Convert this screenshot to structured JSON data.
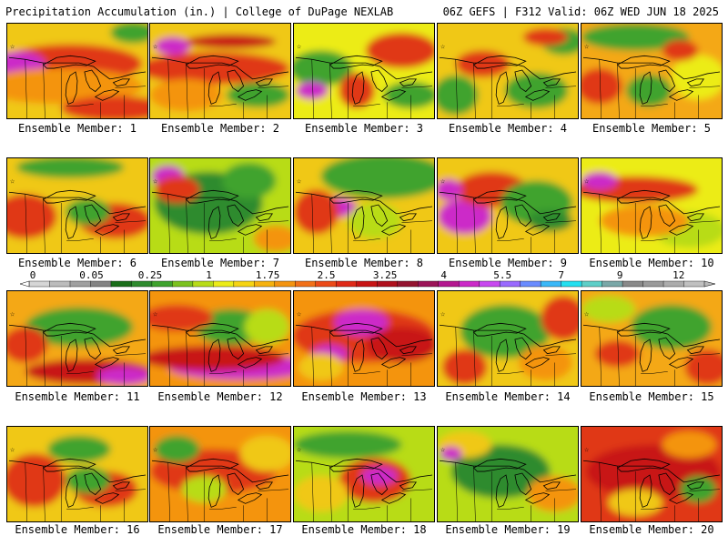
{
  "header": {
    "left": "Precipitation Accumulation (in.) | College of DuPage NEXLAB",
    "right": "06Z GEFS | F312 Valid: 06Z WED JUN 18 2025"
  },
  "colorbar": {
    "labels": [
      "0",
      "0.05",
      "0.25",
      "1",
      "1.75",
      "2.5",
      "3.25",
      "4",
      "5.5",
      "7",
      "9",
      "12"
    ],
    "colors": [
      "#d6d6d6",
      "#bcbcbc",
      "#a0a0a0",
      "#848484",
      "#1a6e1a",
      "#2e8b2e",
      "#3fa32e",
      "#7cc21f",
      "#b8dc18",
      "#ecec18",
      "#f6d412",
      "#f6b20e",
      "#f49410",
      "#f27018",
      "#ec4a18",
      "#e02a18",
      "#c81414",
      "#b0101c",
      "#941430",
      "#9c1458",
      "#b41890",
      "#cc2ac8",
      "#c848f0",
      "#9a6aff",
      "#6a8cff",
      "#3ab8f8",
      "#24e0f0",
      "#5ecfc8",
      "#7aa8a8",
      "#8a8a8a",
      "#9a9a9a",
      "#acacac",
      "#c0c0c0"
    ]
  },
  "members": [
    {
      "label": "Ensemble Member: 1",
      "base": "#f0c818",
      "blobs": [
        [
          "#e03818",
          70,
          45,
          80,
          22
        ],
        [
          "#cc2ac8",
          12,
          45,
          30,
          14
        ],
        [
          "#f49410",
          60,
          70,
          90,
          20
        ],
        [
          "#3fa32e",
          140,
          10,
          25,
          12
        ],
        [
          "#e03818",
          120,
          95,
          60,
          14
        ]
      ]
    },
    {
      "label": "Ensemble Member: 2",
      "base": "#f0c818",
      "blobs": [
        [
          "#e03818",
          70,
          50,
          85,
          18
        ],
        [
          "#cc2ac8",
          25,
          25,
          20,
          10
        ],
        [
          "#f49410",
          40,
          80,
          40,
          18
        ],
        [
          "#3fa32e",
          120,
          80,
          35,
          14
        ],
        [
          "#c81414",
          90,
          20,
          50,
          8
        ]
      ]
    },
    {
      "label": "Ensemble Member: 3",
      "base": "#ecec18",
      "blobs": [
        [
          "#3fa32e",
          30,
          50,
          35,
          20
        ],
        [
          "#e03818",
          120,
          30,
          40,
          20
        ],
        [
          "#cc2ac8",
          20,
          75,
          18,
          10
        ],
        [
          "#e03818",
          70,
          75,
          20,
          20
        ],
        [
          "#3fa32e",
          130,
          80,
          30,
          15
        ]
      ]
    },
    {
      "label": "Ensemble Member: 4",
      "base": "#f0c818",
      "blobs": [
        [
          "#3fa32e",
          20,
          80,
          25,
          22
        ],
        [
          "#3fa32e",
          140,
          20,
          25,
          15
        ],
        [
          "#3fa32e",
          110,
          75,
          35,
          20
        ],
        [
          "#e03818",
          50,
          45,
          30,
          15
        ],
        [
          "#e03818",
          120,
          15,
          25,
          10
        ]
      ]
    },
    {
      "label": "Ensemble Member: 5",
      "base": "#f4a814",
      "blobs": [
        [
          "#3fa32e",
          60,
          15,
          60,
          15
        ],
        [
          "#3fa32e",
          75,
          75,
          25,
          18
        ],
        [
          "#e03818",
          20,
          70,
          25,
          20
        ],
        [
          "#ecec18",
          130,
          60,
          30,
          25
        ],
        [
          "#e03818",
          110,
          30,
          20,
          12
        ]
      ]
    },
    {
      "label": "Ensemble Member: 6",
      "base": "#f0c818",
      "blobs": [
        [
          "#3fa32e",
          70,
          10,
          60,
          12
        ],
        [
          "#e03818",
          20,
          65,
          35,
          25
        ],
        [
          "#e03818",
          120,
          70,
          40,
          20
        ],
        [
          "#3fa32e",
          90,
          60,
          25,
          15
        ]
      ]
    },
    {
      "label": "Ensemble Member: 7",
      "base": "#b8dc18",
      "blobs": [
        [
          "#2e8b2e",
          65,
          50,
          60,
          35
        ],
        [
          "#cc2ac8",
          20,
          20,
          18,
          12
        ],
        [
          "#e03818",
          30,
          35,
          25,
          15
        ],
        [
          "#3fa32e",
          110,
          25,
          30,
          20
        ],
        [
          "#f49410",
          140,
          90,
          25,
          15
        ]
      ]
    },
    {
      "label": "Ensemble Member: 8",
      "base": "#f0c818",
      "blobs": [
        [
          "#3fa32e",
          100,
          20,
          70,
          25
        ],
        [
          "#cc2ac8",
          40,
          55,
          30,
          12
        ],
        [
          "#e03818",
          25,
          60,
          25,
          25
        ],
        [
          "#b8dc18",
          90,
          70,
          30,
          20
        ]
      ]
    },
    {
      "label": "Ensemble Member: 9",
      "base": "#f0c818",
      "blobs": [
        [
          "#cc2ac8",
          30,
          65,
          30,
          20
        ],
        [
          "#e03818",
          60,
          35,
          40,
          20
        ],
        [
          "#3fa32e",
          110,
          50,
          40,
          25
        ],
        [
          "#cc2ac8",
          12,
          35,
          15,
          12
        ],
        [
          "#2e8b2e",
          125,
          70,
          25,
          12
        ]
      ]
    },
    {
      "label": "Ensemble Member: 10",
      "base": "#ecec18",
      "blobs": [
        [
          "#e03818",
          60,
          35,
          70,
          15
        ],
        [
          "#cc2ac8",
          20,
          25,
          20,
          10
        ],
        [
          "#b8dc18",
          120,
          80,
          40,
          20
        ],
        [
          "#f49410",
          70,
          70,
          50,
          18
        ]
      ]
    },
    {
      "label": "Ensemble Member: 11",
      "base": "#f4a814",
      "blobs": [
        [
          "#3fa32e",
          80,
          40,
          60,
          22
        ],
        [
          "#c81414",
          90,
          90,
          70,
          14
        ],
        [
          "#cc2ac8",
          130,
          95,
          30,
          10
        ],
        [
          "#e03818",
          20,
          60,
          25,
          20
        ]
      ]
    },
    {
      "label": "Ensemble Member: 12",
      "base": "#f49410",
      "blobs": [
        [
          "#cc2ac8",
          100,
          85,
          80,
          14
        ],
        [
          "#c81414",
          70,
          75,
          80,
          14
        ],
        [
          "#3fa32e",
          90,
          40,
          40,
          20
        ],
        [
          "#e03818",
          30,
          30,
          40,
          15
        ],
        [
          "#b8dc18",
          130,
          40,
          25,
          20
        ]
      ]
    },
    {
      "label": "Ensemble Member: 13",
      "base": "#f49410",
      "blobs": [
        [
          "#e03818",
          78,
          50,
          80,
          30
        ],
        [
          "#cc2ac8",
          75,
          35,
          30,
          15
        ],
        [
          "#c81414",
          120,
          60,
          40,
          20
        ],
        [
          "#cc2ac8",
          40,
          70,
          20,
          10
        ],
        [
          "#f0c818",
          30,
          85,
          25,
          15
        ]
      ]
    },
    {
      "label": "Ensemble Member: 14",
      "base": "#f0c818",
      "blobs": [
        [
          "#3fa32e",
          75,
          45,
          50,
          30
        ],
        [
          "#e03818",
          140,
          30,
          25,
          25
        ],
        [
          "#24e0f0",
          18,
          90,
          10,
          8
        ],
        [
          "#e03818",
          30,
          85,
          25,
          20
        ],
        [
          "#f49410",
          120,
          80,
          30,
          20
        ]
      ]
    },
    {
      "label": "Ensemble Member: 15",
      "base": "#f4a814",
      "blobs": [
        [
          "#3fa32e",
          100,
          40,
          45,
          25
        ],
        [
          "#b8dc18",
          30,
          20,
          30,
          15
        ],
        [
          "#e03818",
          140,
          85,
          25,
          20
        ],
        [
          "#e03818",
          40,
          70,
          25,
          15
        ]
      ]
    },
    {
      "label": "Ensemble Member: 16",
      "base": "#f0c818",
      "blobs": [
        [
          "#e03818",
          30,
          60,
          35,
          30
        ],
        [
          "#3fa32e",
          80,
          25,
          35,
          15
        ],
        [
          "#e03818",
          110,
          70,
          35,
          20
        ],
        [
          "#3fa32e",
          90,
          60,
          25,
          15
        ]
      ]
    },
    {
      "label": "Ensemble Member: 17",
      "base": "#f49410",
      "blobs": [
        [
          "#e03818",
          70,
          50,
          70,
          25
        ],
        [
          "#b8dc18",
          60,
          70,
          25,
          15
        ],
        [
          "#3fa32e",
          30,
          25,
          25,
          15
        ],
        [
          "#f0c818",
          130,
          30,
          30,
          20
        ]
      ]
    },
    {
      "label": "Ensemble Member: 18",
      "base": "#b8dc18",
      "blobs": [
        [
          "#3fa32e",
          60,
          20,
          60,
          15
        ],
        [
          "#e03818",
          90,
          60,
          40,
          25
        ],
        [
          "#cc2ac8",
          95,
          55,
          20,
          10
        ],
        [
          "#f0c818",
          30,
          75,
          30,
          20
        ]
      ]
    },
    {
      "label": "Ensemble Member: 19",
      "base": "#b8dc18",
      "blobs": [
        [
          "#2e8b2e",
          70,
          50,
          55,
          30
        ],
        [
          "#f0c818",
          30,
          20,
          30,
          15
        ],
        [
          "#f49410",
          130,
          75,
          30,
          20
        ],
        [
          "#cc2ac8",
          15,
          30,
          12,
          8
        ]
      ]
    },
    {
      "label": "Ensemble Member: 20",
      "base": "#e03818",
      "blobs": [
        [
          "#c81414",
          80,
          50,
          75,
          30
        ],
        [
          "#f49410",
          120,
          20,
          30,
          15
        ],
        [
          "#f0c818",
          60,
          85,
          30,
          15
        ],
        [
          "#3fa32e",
          130,
          70,
          20,
          15
        ]
      ]
    }
  ]
}
